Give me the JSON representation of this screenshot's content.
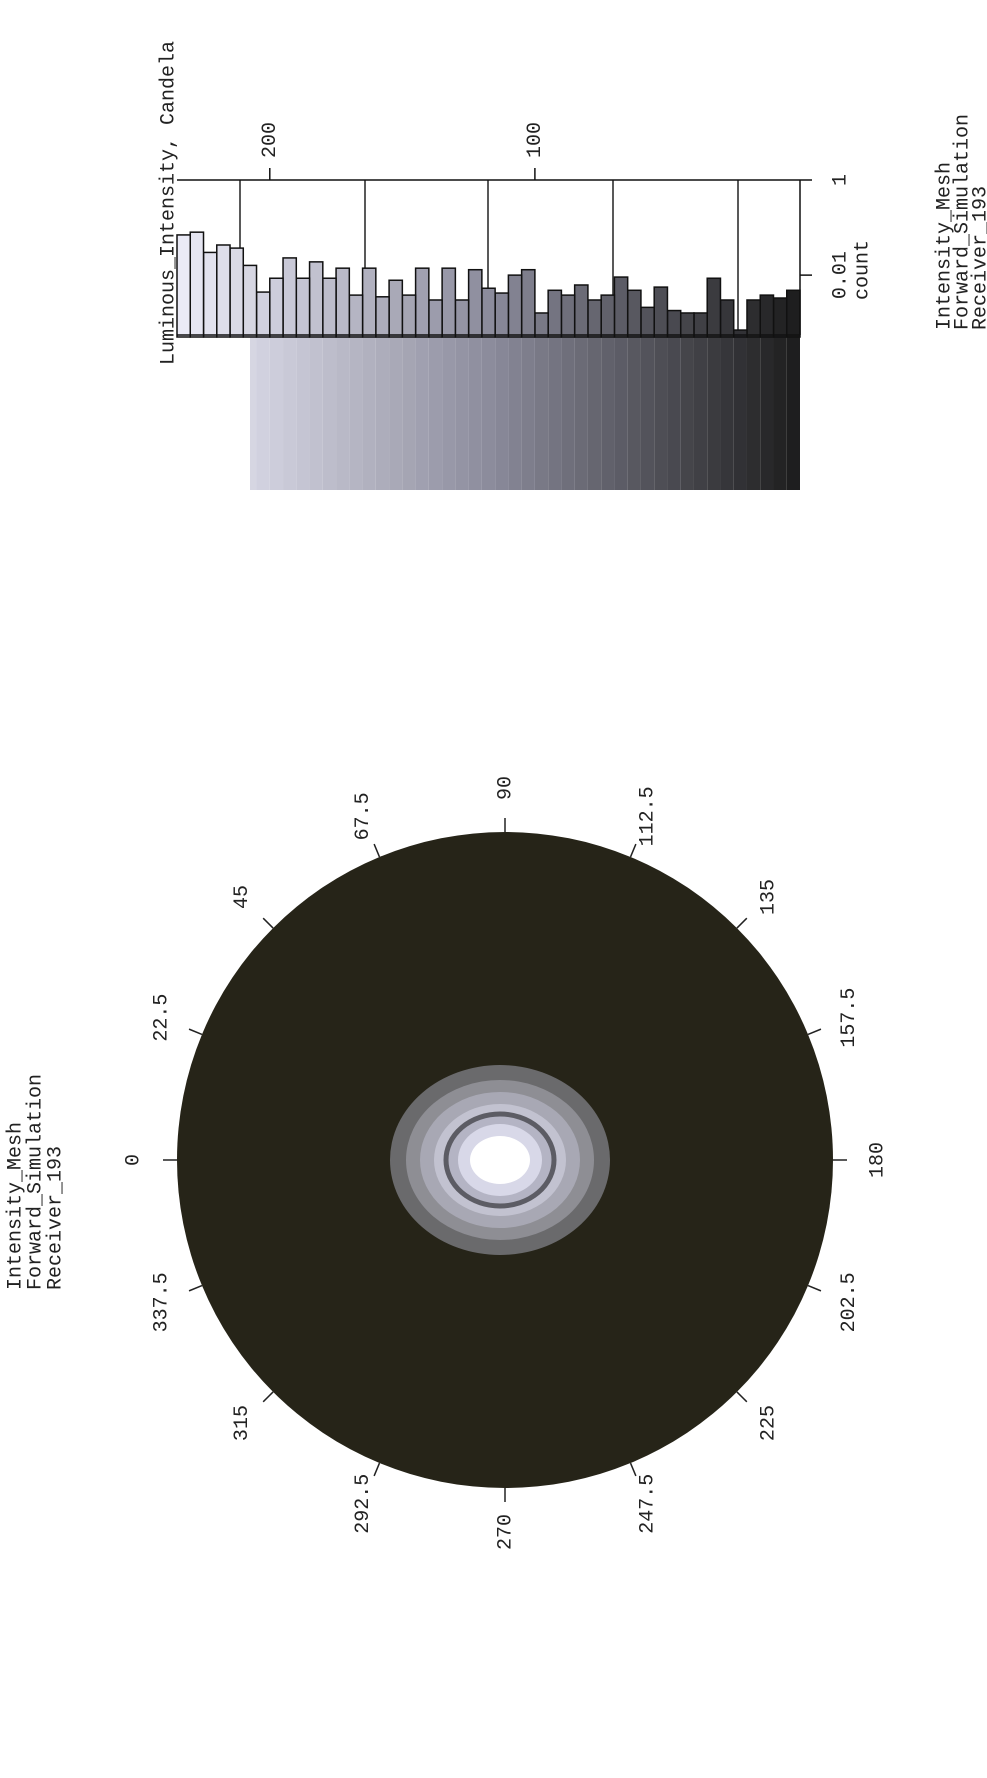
{
  "chart_data": [
    {
      "type": "polar",
      "title": [
        "Intensity_Mesh",
        "Forward_Simulation",
        "Receiver_193"
      ],
      "angle_ticks": [
        0,
        22.5,
        45,
        67.5,
        90,
        112.5,
        135,
        157.5,
        180,
        202.5,
        225,
        247.5,
        270,
        292.5,
        315,
        337.5
      ]
    },
    {
      "type": "histogram",
      "orientation": "horizontal",
      "title": [
        "Intensity_Mesh",
        "Forward_Simulation",
        "Receiver_193"
      ],
      "y_label": "Luminous_Intensity, Candela",
      "x_label": "count",
      "bins": [
        0,
        5,
        10,
        15,
        20,
        25,
        30,
        35,
        40,
        45,
        50,
        55,
        60,
        65,
        70,
        75,
        80,
        85,
        90,
        95,
        100,
        105,
        110,
        115,
        120,
        125,
        130,
        135,
        140,
        145,
        150,
        155,
        160,
        165,
        170,
        175,
        180,
        185,
        190,
        195,
        200,
        205,
        210,
        215,
        220,
        225,
        230,
        235
      ],
      "counts": [
        0.0048,
        0.0033,
        0.0038,
        0.003,
        0.0007,
        0.003,
        0.0086,
        0.0016,
        0.0016,
        0.0018,
        0.0056,
        0.0021,
        0.0048,
        0.0091,
        0.0038,
        0.003,
        0.0062,
        0.0038,
        0.0048,
        0.0016,
        0.013,
        0.01,
        0.0042,
        0.0053,
        0.013,
        0.003,
        0.014,
        0.003,
        0.014,
        0.0038,
        0.0078,
        0.0035,
        0.014,
        0.0038,
        0.014,
        0.0086,
        0.019,
        0.0086,
        0.023,
        0.0086,
        0.0044,
        0.016,
        0.037,
        0.043,
        0.03,
        0.08,
        0.07
      ],
      "xlim": [
        0.0005,
        1
      ],
      "xscale": "log",
      "xticks": [
        0.01,
        1
      ],
      "ylim": [
        0,
        235
      ],
      "yticks": [
        100,
        200
      ],
      "colormap": [
        "#1c1c1c",
        "#8c8c9c",
        "#ececf8"
      ]
    }
  ]
}
